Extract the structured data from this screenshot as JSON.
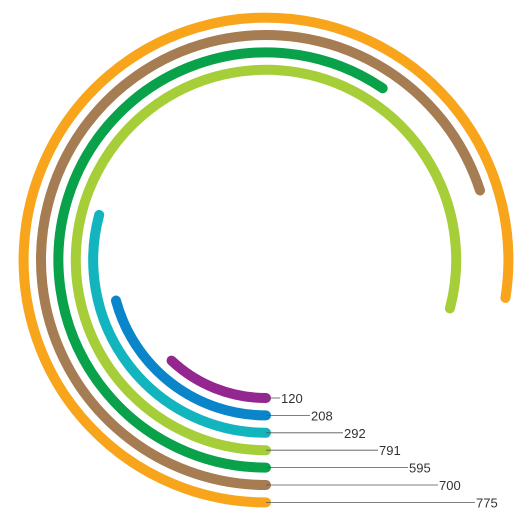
{
  "chart_data": {
    "type": "radial-bar",
    "title": "",
    "max_value": 1000,
    "series": [
      {
        "value": 120,
        "label": "120",
        "color": "#93278F"
      },
      {
        "value": 208,
        "label": "208",
        "color": "#0A85C9"
      },
      {
        "value": 292,
        "label": "292",
        "color": "#12B5BD"
      },
      {
        "value": 791,
        "label": "791",
        "color": "#A6CE39"
      },
      {
        "value": 595,
        "label": "595",
        "color": "#0AA14B"
      },
      {
        "value": 700,
        "label": "700",
        "color": "#A67C52"
      },
      {
        "value": 775,
        "label": "775",
        "color": "#F8A51B"
      }
    ],
    "legend": "none",
    "grid": false
  }
}
